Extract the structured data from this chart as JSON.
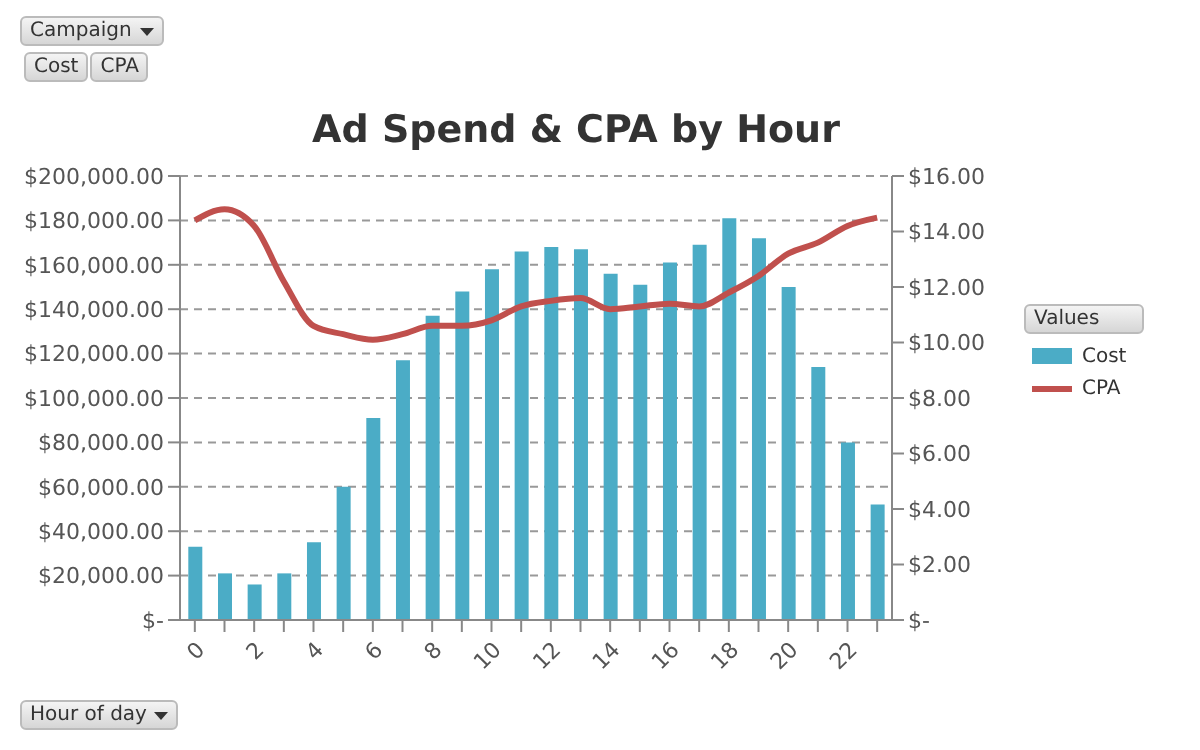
{
  "chart_data": {
    "type": "bar",
    "title": "Ad Spend & CPA by Hour",
    "xlabel": "Hour of day",
    "legend_title": "Values",
    "annotations": [
      "Campaign",
      "Cost",
      "CPA"
    ],
    "categories": [
      "0",
      null,
      "2",
      null,
      "4",
      null,
      "6",
      null,
      "8",
      null,
      "10",
      null,
      "12",
      null,
      "14",
      null,
      "16",
      null,
      "18",
      null,
      "20",
      null,
      "22",
      null
    ],
    "series": [
      {
        "name": "Cost",
        "color": "#4bacc6",
        "values": [
          33000,
          21000,
          16000,
          21000,
          35000,
          60000,
          91000,
          117000,
          137000,
          148000,
          158000,
          166000,
          168000,
          167000,
          156000,
          151000,
          161000,
          169000,
          181000,
          172000,
          150000,
          114000,
          80000,
          52000
        ]
      },
      {
        "name": "CPA",
        "type": "line",
        "axis": "y2",
        "color": "#c0504d",
        "values": [
          14.4,
          14.8,
          14.2,
          12.2,
          10.6,
          10.3,
          10.1,
          10.3,
          10.6,
          10.6,
          10.8,
          11.3,
          11.5,
          11.6,
          11.2,
          11.3,
          11.4,
          11.3,
          11.8,
          12.4,
          13.2,
          13.6,
          14.2,
          14.5
        ]
      }
    ],
    "ylim": [
      0,
      200000
    ],
    "yticks": [
      {
        "value": 0,
        "label": "$-"
      },
      {
        "value": 20000,
        "label": "$20,000.00"
      },
      {
        "value": 40000,
        "label": "$40,000.00"
      },
      {
        "value": 60000,
        "label": "$60,000.00"
      },
      {
        "value": 80000,
        "label": "$80,000.00"
      },
      {
        "value": 100000,
        "label": "$100,000.00"
      },
      {
        "value": 120000,
        "label": "$120,000.00"
      },
      {
        "value": 140000,
        "label": "$140,000.00"
      },
      {
        "value": 160000,
        "label": "$160,000.00"
      },
      {
        "value": 180000,
        "label": "$180,000.00"
      },
      {
        "value": 200000,
        "label": "$200,000.00"
      }
    ],
    "y2lim": [
      0,
      16
    ],
    "y2ticks": [
      {
        "value": 0,
        "label": "$-"
      },
      {
        "value": 2,
        "label": "$2.00"
      },
      {
        "value": 4,
        "label": "$4.00"
      },
      {
        "value": 6,
        "label": "$6.00"
      },
      {
        "value": 8,
        "label": "$8.00"
      },
      {
        "value": 10,
        "label": "$10.00"
      },
      {
        "value": 12,
        "label": "$12.00"
      },
      {
        "value": 14,
        "label": "$14.00"
      },
      {
        "value": 16,
        "label": "$16.00"
      }
    ],
    "grid": "y",
    "legend": "right",
    "marker": "none",
    "line_style": "solid"
  }
}
